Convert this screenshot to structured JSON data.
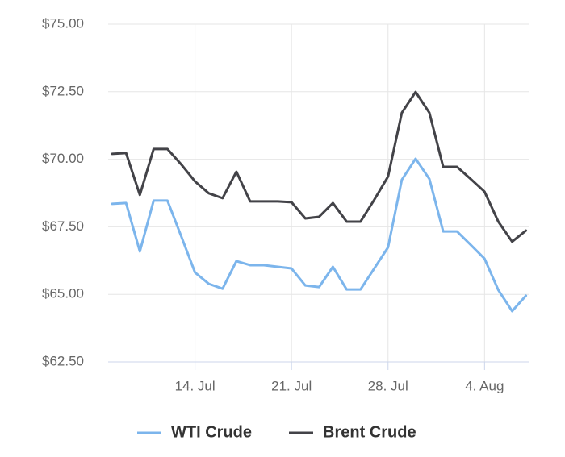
{
  "chart_data": {
    "type": "line",
    "x": [
      "8. Jul",
      "9. Jul",
      "10. Jul",
      "11. Jul",
      "12. Jul",
      "13. Jul",
      "14. Jul",
      "15. Jul",
      "16. Jul",
      "17. Jul",
      "18. Jul",
      "19. Jul",
      "20. Jul",
      "21. Jul",
      "22. Jul",
      "23. Jul",
      "24. Jul",
      "25. Jul",
      "26. Jul",
      "27. Jul",
      "28. Jul",
      "29. Jul",
      "30. Jul",
      "31. Jul",
      "1. Aug",
      "2. Aug",
      "3. Aug",
      "4. Aug",
      "5. Aug",
      "6. Aug",
      "7. Aug"
    ],
    "xticks": [
      "14. Jul",
      "21. Jul",
      "28. Jul",
      "4. Aug"
    ],
    "series": [
      {
        "name": "WTI Crude",
        "color": "#7cb5ec",
        "values": [
          68.35,
          68.38,
          66.59,
          68.47,
          68.47,
          67.15,
          65.81,
          65.39,
          65.21,
          66.23,
          66.08,
          66.08,
          66.02,
          65.96,
          65.33,
          65.27,
          66.02,
          65.18,
          65.18,
          65.96,
          66.74,
          69.24,
          70.02,
          69.27,
          67.33,
          67.33,
          66.83,
          66.32,
          65.16,
          64.38,
          64.95
        ]
      },
      {
        "name": "Brent Crude",
        "color": "#434348",
        "values": [
          70.2,
          70.23,
          68.68,
          70.38,
          70.38,
          69.81,
          69.18,
          68.74,
          68.56,
          69.54,
          68.44,
          68.44,
          68.44,
          68.41,
          67.81,
          67.87,
          68.38,
          67.69,
          67.69,
          68.5,
          69.36,
          71.72,
          72.49,
          71.72,
          69.72,
          69.72,
          69.27,
          68.8,
          67.69,
          66.95,
          67.36
        ]
      }
    ],
    "ylim": [
      62.5,
      75
    ],
    "yticks": [
      {
        "value": 62.5,
        "label": "$62.50"
      },
      {
        "value": 65,
        "label": "$65.00"
      },
      {
        "value": 67.5,
        "label": "$67.50"
      },
      {
        "value": 70,
        "label": "$70.00"
      },
      {
        "value": 72.5,
        "label": "$72.50"
      },
      {
        "value": 75,
        "label": "$75.00"
      }
    ],
    "grid": true,
    "legend": "bottom"
  }
}
